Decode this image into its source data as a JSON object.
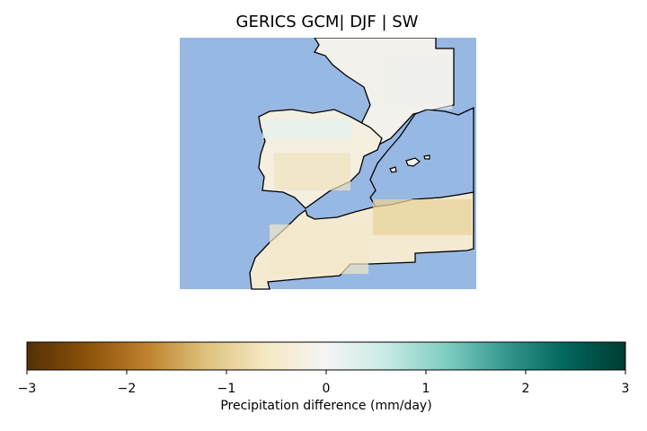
{
  "title": "GERICS GCM| DJF | SW",
  "colors": {
    "ocean": "#98b8e4",
    "coast": "#000000",
    "neutral": "#f4f2ef"
  },
  "colorbar": {
    "label": "Precipitation difference (mm/day)",
    "range": [
      -3,
      3
    ],
    "ticks": [
      "−3",
      "−2",
      "−1",
      "0",
      "1",
      "2",
      "3"
    ],
    "colormap": "BrBG",
    "stops": [
      "#543005",
      "#8c510a",
      "#bf812d",
      "#dfc27d",
      "#f6e8c3",
      "#f5f5f5",
      "#c7eae5",
      "#80cdc1",
      "#35978f",
      "#01665e",
      "#003c30"
    ]
  }
}
